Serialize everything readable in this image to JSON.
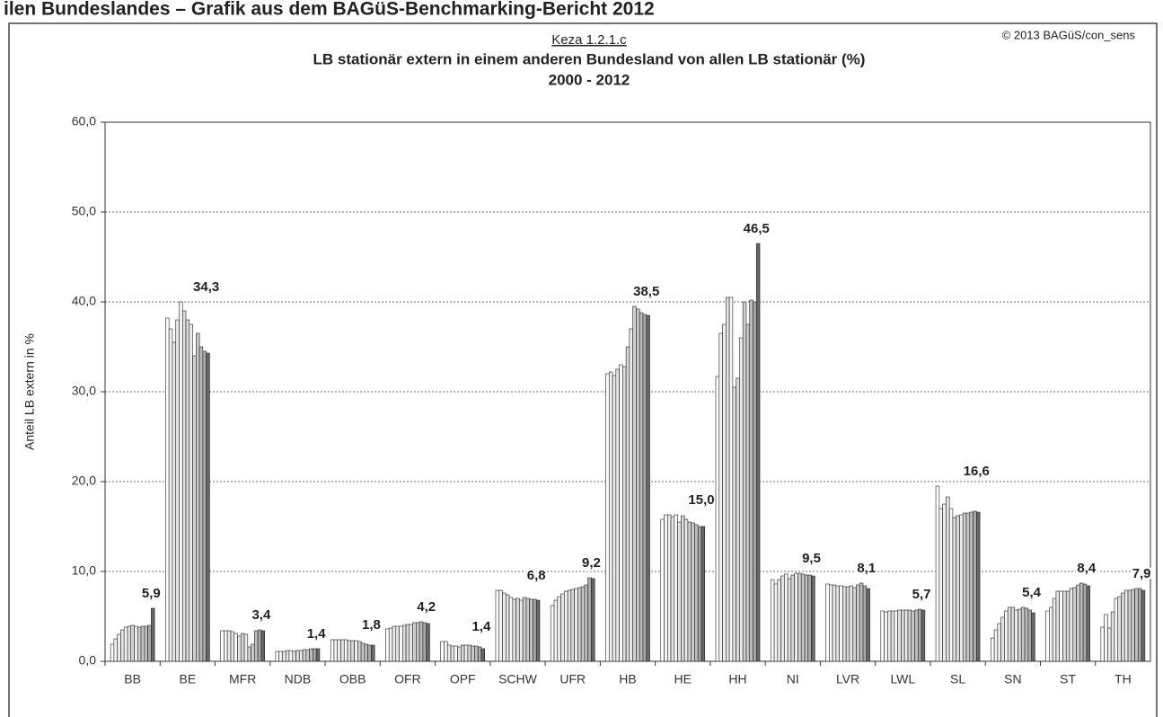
{
  "header": "ilen Bundeslandes – Grafik aus dem BAGüS-Benchmarking-Bericht 2012",
  "chart_data": {
    "type": "grouped-bar",
    "code": "Keza 1.2.1.c",
    "title": "LB stationär extern in einem anderen Bundesland von allen LB stationär (%)",
    "subtitle": "2000 - 2012",
    "copyright": "© 2013 BAGüS/con_sens",
    "y_label": "Anteil LB extern in %",
    "categories": [
      "BB",
      "BE",
      "MFR",
      "NDB",
      "OBB",
      "OFR",
      "OPF",
      "SCHW",
      "UFR",
      "HB",
      "HE",
      "HH",
      "NI",
      "LVR",
      "LWL",
      "SL",
      "SN",
      "ST",
      "TH"
    ],
    "values": [
      [
        1.9,
        2.5,
        3.0,
        3.5,
        3.8,
        3.9,
        4.0,
        3.9,
        3.8,
        3.9,
        3.9,
        4.0,
        5.9
      ],
      [
        38.2,
        37.0,
        35.5,
        38.0,
        40.0,
        39.0,
        38.0,
        37.5,
        34.0,
        36.5,
        35.0,
        34.5,
        34.3
      ],
      [
        3.4,
        3.4,
        3.4,
        3.3,
        3.1,
        2.8,
        3.1,
        3.0,
        1.6,
        1.9,
        3.4,
        3.5,
        3.4
      ],
      [
        1.1,
        1.1,
        1.1,
        1.2,
        1.2,
        1.1,
        1.2,
        1.2,
        1.3,
        1.3,
        1.4,
        1.4,
        1.4
      ],
      [
        2.4,
        2.4,
        2.4,
        2.4,
        2.4,
        2.3,
        2.3,
        2.3,
        2.2,
        2.0,
        1.9,
        1.8,
        1.8
      ],
      [
        3.6,
        3.7,
        3.9,
        3.9,
        3.9,
        4.0,
        4.1,
        4.1,
        4.3,
        4.3,
        4.4,
        4.3,
        4.2
      ],
      [
        2.2,
        2.2,
        1.8,
        1.7,
        1.7,
        1.6,
        1.8,
        1.8,
        1.8,
        1.7,
        1.7,
        1.6,
        1.4
      ],
      [
        7.9,
        7.9,
        7.6,
        7.4,
        7.1,
        6.9,
        7.0,
        6.8,
        7.1,
        7.0,
        6.9,
        6.9,
        6.8
      ],
      [
        6.2,
        6.8,
        7.2,
        7.5,
        7.8,
        7.9,
        8.0,
        8.1,
        8.2,
        8.3,
        8.5,
        9.3,
        9.2
      ],
      [
        32.0,
        32.2,
        31.8,
        32.5,
        33.0,
        32.8,
        35.0,
        37.0,
        39.5,
        39.2,
        38.8,
        38.6,
        38.5
      ],
      [
        15.8,
        16.3,
        16.3,
        16.1,
        16.3,
        15.5,
        16.2,
        15.8,
        15.5,
        15.4,
        15.2,
        15.0,
        15.0
      ],
      [
        31.7,
        36.5,
        37.5,
        40.5,
        40.5,
        30.5,
        31.5,
        36.0,
        40.0,
        37.5,
        40.2,
        40.0,
        46.5
      ],
      [
        9.1,
        8.6,
        9.1,
        9.5,
        9.7,
        9.2,
        9.6,
        9.8,
        9.8,
        9.7,
        9.6,
        9.6,
        9.5
      ],
      [
        8.6,
        8.5,
        8.5,
        8.4,
        8.4,
        8.3,
        8.3,
        8.4,
        8.2,
        8.5,
        8.7,
        8.4,
        8.1
      ],
      [
        5.6,
        5.5,
        5.6,
        5.6,
        5.6,
        5.7,
        5.7,
        5.7,
        5.7,
        5.6,
        5.7,
        5.8,
        5.7
      ],
      [
        19.5,
        17.0,
        17.5,
        18.3,
        17.0,
        16.0,
        16.2,
        16.3,
        16.5,
        16.5,
        16.6,
        16.7,
        16.6
      ],
      [
        2.6,
        3.5,
        4.2,
        4.9,
        5.6,
        6.0,
        6.0,
        5.7,
        5.8,
        6.0,
        5.9,
        5.7,
        5.4
      ],
      [
        5.6,
        6.0,
        7.0,
        7.8,
        7.8,
        7.8,
        7.8,
        8.1,
        8.2,
        8.5,
        8.7,
        8.6,
        8.4
      ],
      [
        3.8,
        5.2,
        3.7,
        5.5,
        7.0,
        7.2,
        7.6,
        7.9,
        7.9,
        8.0,
        8.1,
        8.1,
        7.9
      ]
    ],
    "value_labels": [
      [
        null,
        null,
        null,
        null,
        null,
        null,
        null,
        null,
        null,
        null,
        null,
        null,
        "5,9"
      ],
      [
        null,
        null,
        null,
        null,
        null,
        null,
        null,
        null,
        null,
        null,
        null,
        null,
        "34,3"
      ],
      [
        null,
        null,
        null,
        null,
        null,
        null,
        null,
        null,
        null,
        null,
        null,
        null,
        "3,4"
      ],
      [
        null,
        null,
        null,
        null,
        null,
        null,
        null,
        null,
        null,
        null,
        null,
        null,
        "1,4"
      ],
      [
        null,
        null,
        null,
        null,
        null,
        null,
        null,
        null,
        null,
        null,
        null,
        null,
        "1,8"
      ],
      [
        null,
        null,
        null,
        null,
        null,
        null,
        null,
        null,
        null,
        null,
        null,
        null,
        "4,2"
      ],
      [
        null,
        null,
        null,
        null,
        null,
        null,
        null,
        null,
        null,
        null,
        null,
        null,
        "1,4"
      ],
      [
        null,
        null,
        null,
        null,
        null,
        null,
        null,
        null,
        null,
        null,
        null,
        null,
        "6,8"
      ],
      [
        null,
        null,
        null,
        null,
        null,
        null,
        null,
        null,
        null,
        null,
        null,
        null,
        "9,2"
      ],
      [
        null,
        null,
        null,
        null,
        null,
        null,
        null,
        null,
        null,
        null,
        null,
        null,
        "38,5"
      ],
      [
        null,
        null,
        null,
        null,
        null,
        null,
        null,
        null,
        null,
        null,
        null,
        null,
        "15,0"
      ],
      [
        null,
        null,
        null,
        null,
        null,
        null,
        null,
        null,
        null,
        null,
        null,
        null,
        "46,5"
      ],
      [
        null,
        null,
        null,
        null,
        null,
        null,
        null,
        null,
        null,
        null,
        null,
        null,
        "9,5"
      ],
      [
        null,
        null,
        null,
        null,
        null,
        null,
        null,
        null,
        null,
        null,
        null,
        null,
        "8,1"
      ],
      [
        null,
        null,
        null,
        null,
        null,
        null,
        null,
        null,
        null,
        null,
        null,
        null,
        "5,7"
      ],
      [
        null,
        null,
        null,
        null,
        null,
        null,
        null,
        null,
        null,
        null,
        null,
        null,
        "16,6"
      ],
      [
        null,
        null,
        null,
        null,
        null,
        null,
        null,
        null,
        null,
        null,
        null,
        null,
        "5,4"
      ],
      [
        null,
        null,
        null,
        null,
        null,
        null,
        null,
        null,
        null,
        null,
        null,
        null,
        "8,4"
      ],
      [
        null,
        null,
        null,
        null,
        null,
        null,
        null,
        null,
        null,
        null,
        null,
        null,
        "7,9"
      ]
    ],
    "bar_colors": [
      "#ffffff",
      "#f4f4f4",
      "#ececec",
      "#e4e4e4",
      "#f8f8f8",
      "#e0e0e0",
      "#d8d8d8",
      "#ececec",
      "#d0d0d0",
      "#c8c8c8",
      "#bcbcbc",
      "#a8a8a8",
      "#666666"
    ],
    "ylim": [
      0,
      60
    ],
    "yticks": [
      {
        "value": 0,
        "label": "0,0"
      },
      {
        "value": 10,
        "label": "10,0"
      },
      {
        "value": 20,
        "label": "20,0"
      },
      {
        "value": 30,
        "label": "30,0"
      },
      {
        "value": 40,
        "label": "40,0"
      },
      {
        "value": 50,
        "label": "50,0"
      },
      {
        "value": 60,
        "label": "60,0"
      }
    ],
    "grid": true
  }
}
